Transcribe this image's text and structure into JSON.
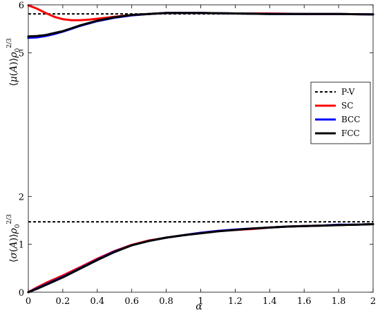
{
  "chart_data": {
    "type": "line",
    "xlabel": "α",
    "ylabel_upper": "⟨μ(A)⟩ρ₀^(2/3)",
    "ylabel_lower": "⟨σ(A)⟩ρ₀^(2/3)",
    "xlim": [
      0,
      2
    ],
    "ylim": [
      0,
      6
    ],
    "x_ticks": [
      0,
      0.2,
      0.4,
      0.6,
      0.8,
      1,
      1.2,
      1.4,
      1.6,
      1.8,
      2
    ],
    "x_tick_labels": [
      "0",
      "0.2",
      "0.4",
      "0.6",
      "0.8",
      "1",
      "1.2",
      "1.4",
      "1.6",
      "1.8",
      "2"
    ],
    "y_ticks": [
      0,
      1,
      2,
      5,
      6
    ],
    "y_tick_labels": [
      "0",
      "1",
      "2",
      "5",
      "6"
    ],
    "grid": false,
    "legend_position": "right",
    "legend": [
      {
        "label": "P-V",
        "color": "#000000",
        "dash": true
      },
      {
        "label": "SC",
        "color": "#ff0000",
        "dash": false
      },
      {
        "label": "BCC",
        "color": "#0000ff",
        "dash": false
      },
      {
        "label": "FCC",
        "color": "#000000",
        "dash": false
      }
    ],
    "reference_lines": [
      {
        "name": "P-V",
        "y": 5.81,
        "color": "#000000"
      },
      {
        "name": "P-V",
        "y": 1.47,
        "color": "#000000"
      }
    ],
    "series": [
      {
        "name": "SC",
        "group": "mean",
        "color": "#ff0000",
        "x": [
          0,
          0.05,
          0.1,
          0.15,
          0.2,
          0.25,
          0.3,
          0.35,
          0.4,
          0.5,
          0.6,
          0.7,
          0.8,
          1.0,
          1.2,
          1.4,
          1.6,
          1.8,
          2.0
        ],
        "y": [
          5.99,
          5.92,
          5.83,
          5.75,
          5.7,
          5.68,
          5.68,
          5.69,
          5.71,
          5.75,
          5.79,
          5.81,
          5.83,
          5.83,
          5.82,
          5.82,
          5.81,
          5.81,
          5.8
        ]
      },
      {
        "name": "BCC",
        "group": "mean",
        "color": "#0000ff",
        "x": [
          0,
          0.05,
          0.1,
          0.15,
          0.2,
          0.25,
          0.3,
          0.35,
          0.4,
          0.5,
          0.6,
          0.7,
          0.8,
          1.0,
          1.2,
          1.4,
          1.6,
          1.8,
          2.0
        ],
        "y": [
          5.31,
          5.32,
          5.35,
          5.39,
          5.44,
          5.5,
          5.56,
          5.61,
          5.66,
          5.73,
          5.78,
          5.81,
          5.83,
          5.83,
          5.82,
          5.81,
          5.81,
          5.81,
          5.8
        ]
      },
      {
        "name": "FCC",
        "group": "mean",
        "color": "#000000",
        "x": [
          0,
          0.05,
          0.1,
          0.15,
          0.2,
          0.25,
          0.3,
          0.35,
          0.4,
          0.5,
          0.6,
          0.7,
          0.8,
          1.0,
          1.2,
          1.4,
          1.6,
          1.8,
          2.0
        ],
        "y": [
          5.34,
          5.35,
          5.37,
          5.41,
          5.45,
          5.51,
          5.57,
          5.62,
          5.67,
          5.74,
          5.79,
          5.81,
          5.83,
          5.83,
          5.82,
          5.81,
          5.81,
          5.81,
          5.8
        ]
      },
      {
        "name": "SC",
        "group": "std",
        "color": "#ff0000",
        "x": [
          0,
          0.05,
          0.1,
          0.15,
          0.2,
          0.3,
          0.4,
          0.5,
          0.6,
          0.7,
          0.8,
          0.9,
          1.0,
          1.1,
          1.2,
          1.3,
          1.4,
          1.5,
          1.6,
          1.7,
          1.8,
          1.9,
          2.0
        ],
        "y": [
          0,
          0.1,
          0.19,
          0.27,
          0.35,
          0.52,
          0.7,
          0.86,
          0.99,
          1.08,
          1.14,
          1.19,
          1.24,
          1.28,
          1.3,
          1.32,
          1.35,
          1.37,
          1.38,
          1.39,
          1.4,
          1.41,
          1.42
        ]
      },
      {
        "name": "BCC",
        "group": "std",
        "color": "#0000ff",
        "x": [
          0,
          0.05,
          0.1,
          0.15,
          0.2,
          0.3,
          0.4,
          0.5,
          0.6,
          0.7,
          0.8,
          0.9,
          1.0,
          1.1,
          1.2,
          1.3,
          1.4,
          1.5,
          1.6,
          1.7,
          1.8,
          1.9,
          2.0
        ],
        "y": [
          0,
          0.08,
          0.16,
          0.24,
          0.32,
          0.5,
          0.68,
          0.85,
          0.98,
          1.07,
          1.14,
          1.19,
          1.24,
          1.28,
          1.31,
          1.33,
          1.35,
          1.37,
          1.38,
          1.39,
          1.41,
          1.41,
          1.42
        ]
      },
      {
        "name": "FCC",
        "group": "std",
        "color": "#000000",
        "x": [
          0,
          0.05,
          0.1,
          0.15,
          0.2,
          0.3,
          0.4,
          0.5,
          0.6,
          0.7,
          0.8,
          0.9,
          1.0,
          1.1,
          1.2,
          1.3,
          1.4,
          1.5,
          1.6,
          1.7,
          1.8,
          1.9,
          2.0
        ],
        "y": [
          0,
          0.07,
          0.15,
          0.23,
          0.31,
          0.49,
          0.67,
          0.84,
          0.98,
          1.07,
          1.14,
          1.19,
          1.23,
          1.27,
          1.3,
          1.33,
          1.35,
          1.37,
          1.38,
          1.39,
          1.4,
          1.41,
          1.42
        ]
      }
    ]
  }
}
